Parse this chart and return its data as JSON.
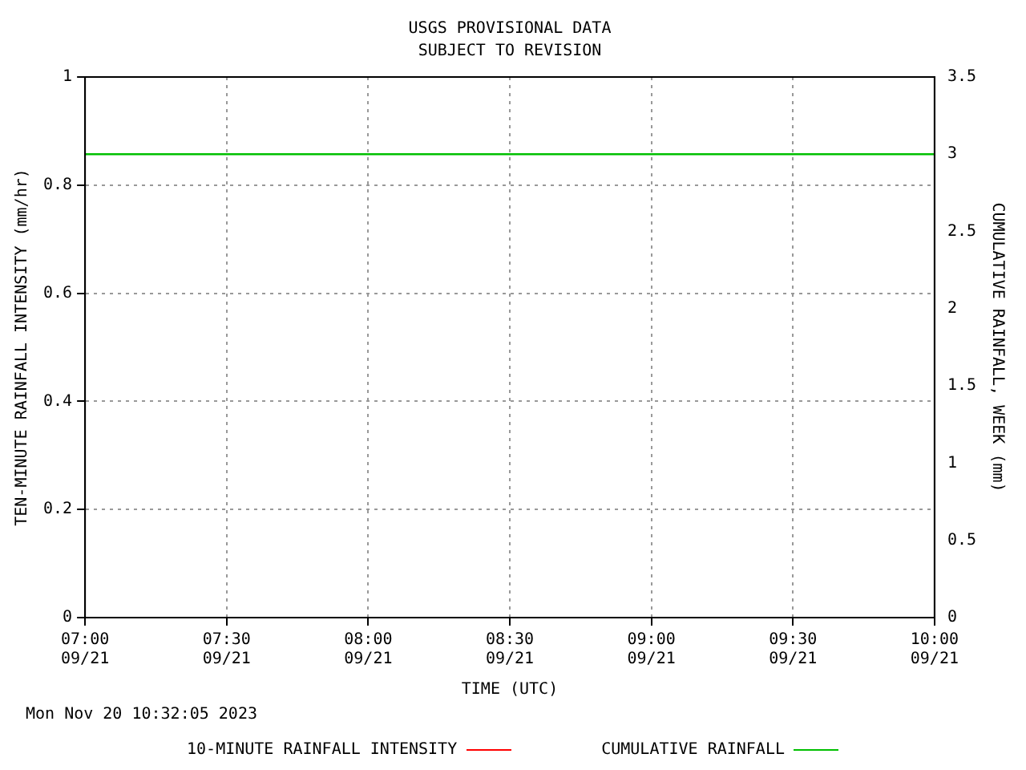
{
  "chart_data": {
    "type": "line",
    "title": "USGS PROVISIONAL DATA",
    "subtitle": "SUBJECT TO REVISION",
    "xlabel": "TIME (UTC)",
    "ylabel": "TEN-MINUTE RAINFALL INTENSITY (mm/hr)",
    "y2label": "CUMULATIVE RAINFALL, WEEK (mm)",
    "x": [
      "2023-09-21T07:00",
      "2023-09-21T10:00"
    ],
    "xlim": [
      "2023-09-21T07:00",
      "2023-09-21T10:00"
    ],
    "xticks": [
      {
        "value": "2023-09-21T07:00",
        "label": "07:00\n09/21"
      },
      {
        "value": "2023-09-21T07:30",
        "label": "07:30\n09/21"
      },
      {
        "value": "2023-09-21T08:00",
        "label": "08:00\n09/21"
      },
      {
        "value": "2023-09-21T08:30",
        "label": "08:30\n09/21"
      },
      {
        "value": "2023-09-21T09:00",
        "label": "09:00\n09/21"
      },
      {
        "value": "2023-09-21T09:30",
        "label": "09:30\n09/21"
      },
      {
        "value": "2023-09-21T10:00",
        "label": "10:00\n09/21"
      }
    ],
    "ylim": [
      0,
      1
    ],
    "yticks": [
      0,
      0.2,
      0.4,
      0.6,
      0.8,
      1
    ],
    "y2lim": [
      0,
      3.5
    ],
    "y2ticks": [
      0,
      0.5,
      1,
      1.5,
      2,
      2.5,
      3,
      3.5
    ],
    "series": [
      {
        "name": "10-MINUTE RAINFALL INTENSITY",
        "color": "#ff0000",
        "values": [
          null,
          null
        ]
      },
      {
        "name": "CUMULATIVE RAINFALL",
        "color": "#00c000",
        "axis": "y2",
        "values": [
          3,
          3
        ]
      }
    ],
    "grid": true,
    "legend": "bottom",
    "line_style": "solid",
    "marker": "none",
    "annotations": [
      "Mon Nov 20 10:32:05 2023"
    ]
  }
}
